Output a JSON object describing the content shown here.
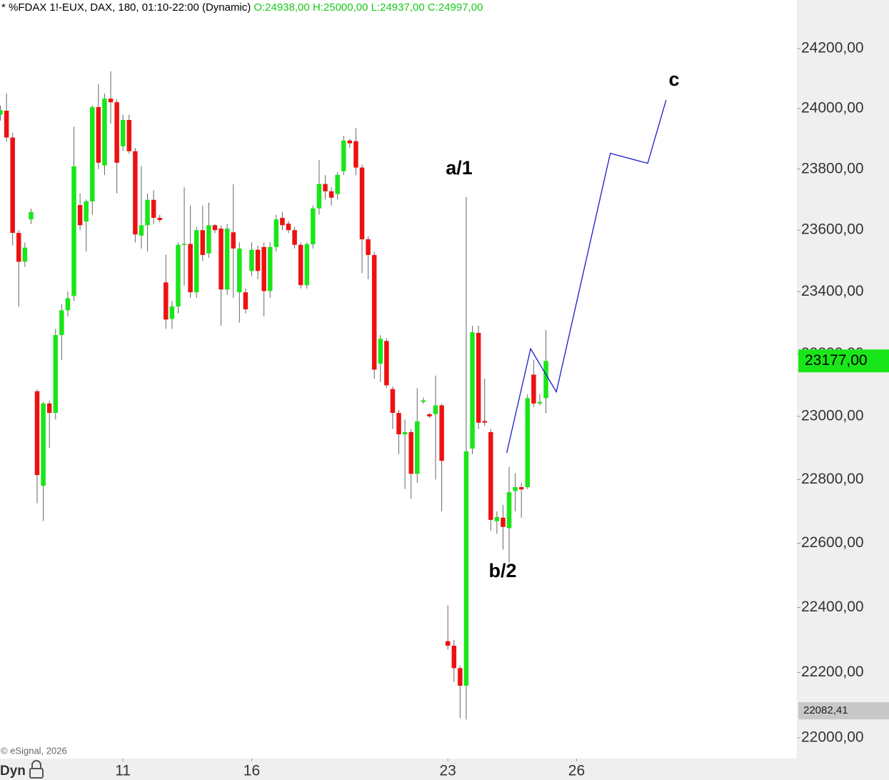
{
  "header": {
    "symbol": "* %FDAX 1!-EUX, DAX, 180, 01:10-22:00 (Dynamic)",
    "ohlc": "O:24938,00 H:25000,00 L:24937,00 C:24997,00"
  },
  "footer": {
    "copyright": "© eSignal, 2026",
    "mode": "Dyn"
  },
  "chart_data": {
    "type": "candlestick",
    "log_scale": true,
    "up_color": "#19e619",
    "down_color": "#ee1111",
    "ylim": [
      21937,
      24363
    ],
    "yticks": [
      {
        "value": 22000,
        "label": "22000,00"
      },
      {
        "value": 22200,
        "label": "22200,00"
      },
      {
        "value": 22400,
        "label": "22400,00"
      },
      {
        "value": 22600,
        "label": "22600,00"
      },
      {
        "value": 22800,
        "label": "22800,00"
      },
      {
        "value": 23000,
        "label": "23000,00"
      },
      {
        "value": 23200,
        "label": "23200,00"
      },
      {
        "value": 23400,
        "label": "23400,00"
      },
      {
        "value": 23600,
        "label": "23600,00"
      },
      {
        "value": 23800,
        "label": "23800,00"
      },
      {
        "value": 24000,
        "label": "24000,00"
      },
      {
        "value": 24200,
        "label": "24200,00"
      }
    ],
    "xlim": [
      -0.06,
      129.94
    ],
    "xticks": [
      {
        "value": 20,
        "label": "11"
      },
      {
        "value": 41,
        "label": "16"
      },
      {
        "value": 73,
        "label": "23"
      },
      {
        "value": 94,
        "label": "26"
      }
    ],
    "x": [
      0,
      1,
      2,
      3,
      4,
      5,
      6,
      7,
      8,
      9,
      10,
      11,
      12,
      13,
      14,
      15,
      16,
      17,
      18,
      19,
      20,
      21,
      22,
      23,
      24,
      25,
      26,
      27,
      28,
      29,
      30,
      31,
      32,
      33,
      34,
      35,
      36,
      37,
      38,
      39,
      40,
      41,
      42,
      43,
      44,
      45,
      46,
      47,
      48,
      49,
      50,
      51,
      52,
      53,
      54,
      55,
      56,
      57,
      58,
      59,
      60,
      61,
      62,
      63,
      64,
      65,
      66,
      67,
      68,
      69,
      70,
      71,
      72,
      73,
      74,
      75,
      76,
      77,
      78,
      79,
      80,
      81,
      82,
      83,
      84,
      85,
      86,
      87,
      88,
      89
    ],
    "open": [
      23980,
      23993,
      23904,
      23591,
      23497,
      23635,
      23080,
      22780,
      23041,
      23011,
      23260,
      23340,
      23386,
      23682,
      23628,
      23694,
      24005,
      23812,
      24033,
      24021,
      23875,
      23962,
      23859,
      23582,
      23616,
      23699,
      23640,
      23430,
      23312,
      23352,
      23552,
      23555,
      23398,
      23600,
      23524,
      23616,
      23605,
      23407,
      23593,
      23398,
      23398,
      23467,
      23536,
      23545,
      23402,
      23545,
      23640,
      23621,
      23600,
      23552,
      23421,
      23554,
      23671,
      23751,
      23727,
      23718,
      23793,
      23894,
      23892,
      23805,
      23570,
      23519,
      23168,
      23241,
      23087,
      23011,
      22943,
      22950,
      22818,
      23046,
      23007,
      23007,
      23035,
      22296,
      22282,
      22213,
      22159,
      22898,
      23267,
      22985,
      22950,
      22669,
      22680,
      22647,
      22764,
      22776,
      22776,
      23133,
      23041,
      23058
    ],
    "high": [
      24010,
      24050,
      23920,
      23600,
      23560,
      23670,
      23085,
      23045,
      23050,
      23280,
      23360,
      23400,
      23940,
      23720,
      23700,
      24010,
      24081,
      24050,
      24124,
      24030,
      23980,
      23980,
      23870,
      23810,
      23720,
      23730,
      23650,
      23520,
      23370,
      23560,
      23740,
      23680,
      23610,
      23680,
      23690,
      23620,
      23615,
      23620,
      23750,
      23560,
      23410,
      23560,
      23550,
      23560,
      23560,
      23650,
      23660,
      23630,
      23610,
      23560,
      23560,
      23680,
      23830,
      23780,
      23740,
      23790,
      23910,
      23900,
      23935,
      23815,
      23580,
      23530,
      23260,
      23250,
      23095,
      23020,
      22990,
      22960,
      23090,
      23060,
      23010,
      23130,
      23040,
      22407,
      22300,
      22220,
      23708,
      23290,
      23290,
      23120,
      22960,
      22700,
      22720,
      22840,
      22820,
      22790,
      23070,
      23180,
      23070,
      23276
    ],
    "low": [
      23960,
      23890,
      23550,
      23352,
      23480,
      23620,
      22725,
      22669,
      22900,
      22990,
      23180,
      23320,
      23370,
      23600,
      23530,
      23650,
      23800,
      23780,
      23950,
      23720,
      23860,
      23850,
      23560,
      23540,
      23530,
      23620,
      23625,
      23280,
      23280,
      23330,
      23420,
      23380,
      23380,
      23500,
      23510,
      23590,
      23290,
      23390,
      23380,
      23300,
      23330,
      23450,
      23440,
      23320,
      23380,
      23530,
      23600,
      23590,
      23540,
      23410,
      23410,
      23540,
      23650,
      23700,
      23680,
      23700,
      23780,
      23870,
      23780,
      23460,
      23440,
      23120,
      23110,
      23090,
      22960,
      22880,
      22770,
      22740,
      22790,
      23040,
      22995,
      22800,
      22700,
      22270,
      22170,
      22060,
      22056,
      22880,
      22960,
      22970,
      22640,
      22630,
      22580,
      22540,
      22700,
      22680,
      22770,
      23030,
      23035,
      23010
    ],
    "close": [
      23995,
      23904,
      23591,
      23497,
      23543,
      23659,
      22814,
      23041,
      23011,
      23260,
      23340,
      23379,
      23809,
      23616,
      23694,
      24005,
      23821,
      24033,
      24021,
      23821,
      23962,
      23859,
      23586,
      23616,
      23699,
      23640,
      23633,
      23310,
      23352,
      23552,
      23555,
      23398,
      23600,
      23519,
      23616,
      23600,
      23407,
      23605,
      23540,
      23540,
      23343,
      23536,
      23467,
      23402,
      23545,
      23635,
      23616,
      23600,
      23552,
      23421,
      23554,
      23671,
      23751,
      23727,
      23706,
      23781,
      23894,
      23885,
      23805,
      23570,
      23519,
      23149,
      23248,
      23099,
      23011,
      22943,
      22950,
      22818,
      22984,
      23051,
      23000,
      23035,
      22859,
      22282,
      22213,
      22159,
      22889,
      23269,
      22980,
      22980,
      22673,
      22682,
      22651,
      22760,
      22776,
      22769,
      23058,
      23041,
      23046,
      23177
    ],
    "projection": {
      "color": "#1a1acc",
      "x": [
        82.6,
        86.5,
        90.7,
        99.5,
        105.6,
        108.6
      ],
      "y": [
        22884,
        23216,
        23078,
        23852,
        23819,
        24028
      ]
    },
    "annotations": [
      "a/1",
      "b/2",
      "c"
    ],
    "last_price": {
      "value": 23177,
      "label": "23177,00",
      "color": "#19e619"
    },
    "low_marker": {
      "value": 22082.41,
      "label": "22082,41",
      "color": "#c8c8c8"
    }
  }
}
